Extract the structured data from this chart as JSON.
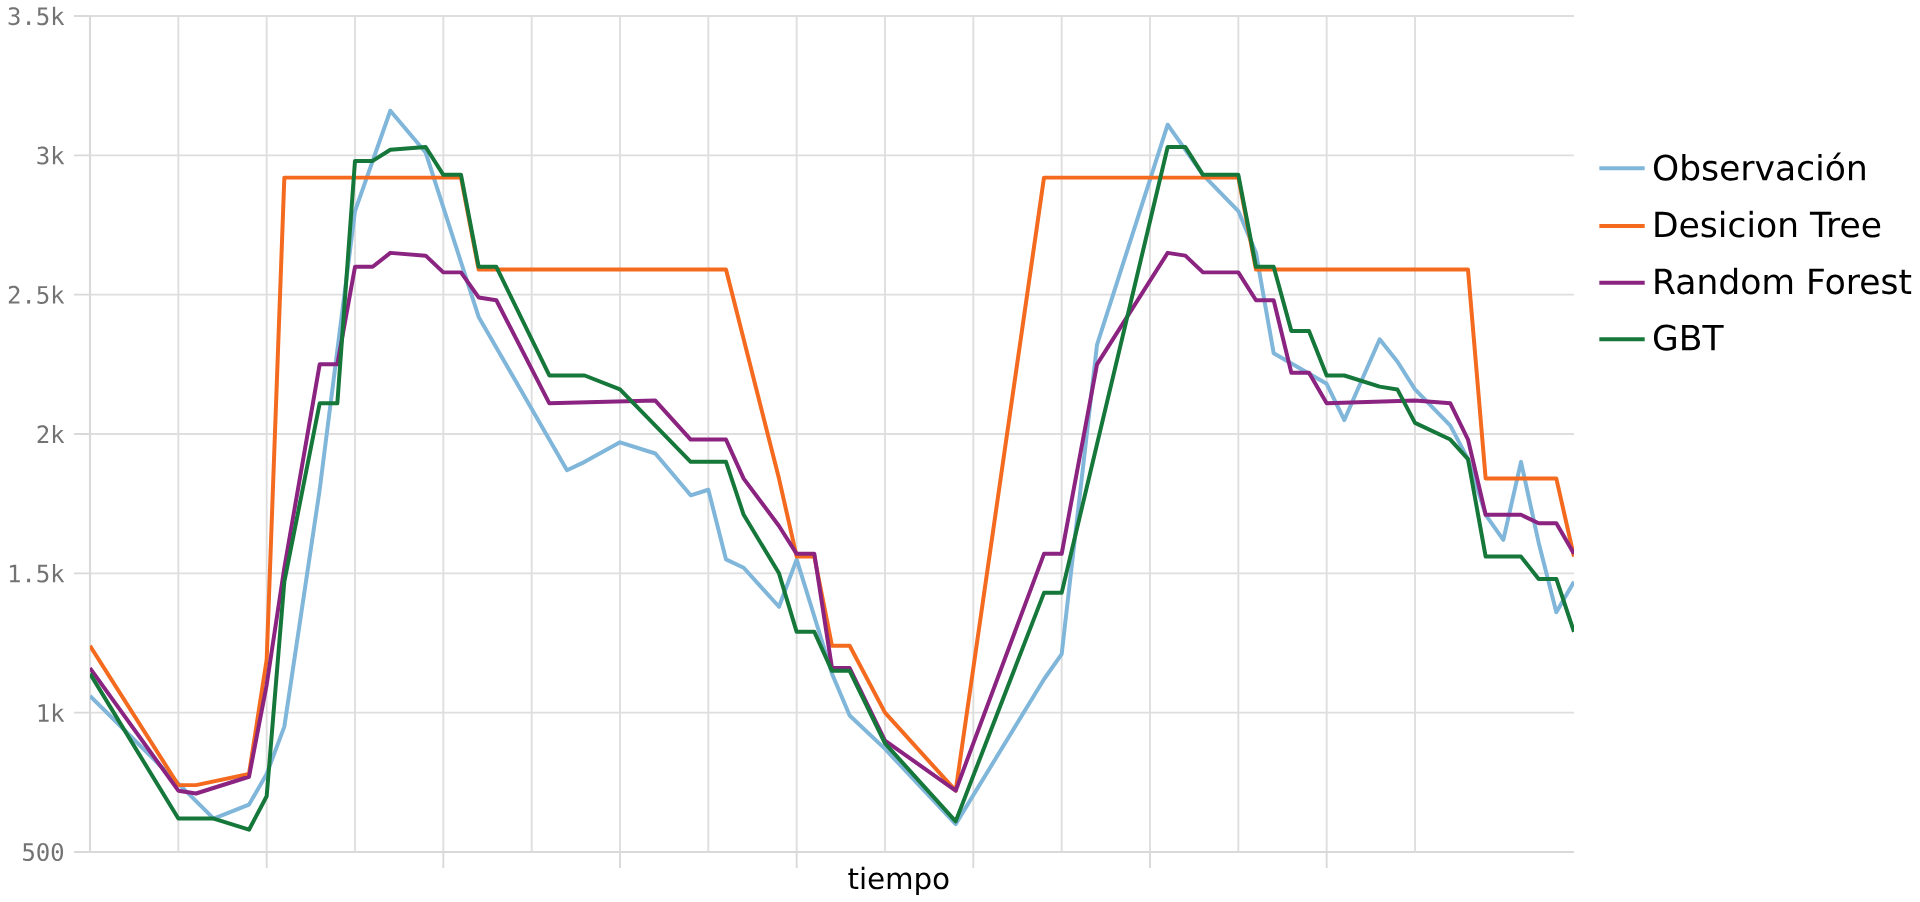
{
  "chart_data": {
    "type": "line",
    "xlabel": "tiempo",
    "categories": [
      null,
      null,
      null,
      null,
      null,
      null,
      null,
      null,
      null,
      null,
      null,
      null,
      null,
      null,
      null,
      null,
      null,
      null,
      null,
      null,
      null,
      null,
      null,
      null,
      null,
      null,
      null,
      null,
      null,
      null,
      null,
      null,
      null,
      null,
      null,
      null,
      null,
      null,
      null,
      null,
      null,
      null,
      null,
      null,
      null,
      null,
      null,
      null,
      null,
      null,
      null,
      null,
      null,
      null,
      null,
      null,
      null,
      null,
      null,
      null,
      null,
      null,
      null,
      null,
      null,
      null,
      null,
      null,
      null,
      null,
      null,
      null,
      null,
      null,
      null,
      null,
      null,
      null,
      null,
      null,
      null,
      null,
      null,
      null,
      null
    ],
    "ylim": [
      500,
      3500
    ],
    "yticks": [
      500,
      {
        "value": 1000,
        "label": "1k"
      },
      {
        "value": 1500,
        "label": "1.5k"
      },
      {
        "value": 2000,
        "label": "2k"
      },
      {
        "value": 2500,
        "label": "2.5k"
      },
      {
        "value": 3000,
        "label": "3k"
      },
      {
        "value": 3500,
        "label": "3.5k"
      }
    ],
    "grid": true,
    "legend": "right",
    "marker": "none",
    "line_style": "solid",
    "series": [
      {
        "name": "Observación",
        "color": "#7fb6d9",
        "values": [
          1060,
          null,
          null,
          null,
          null,
          null,
          null,
          620,
          null,
          670,
          780,
          950,
          null,
          1800,
          null,
          2800,
          null,
          3160,
          null,
          3010,
          null,
          null,
          2420,
          null,
          null,
          null,
          null,
          1870,
          1900,
          null,
          1970,
          null,
          1930,
          null,
          1780,
          1800,
          1550,
          1520,
          null,
          1380,
          1550,
          null,
          1140,
          990,
          null,
          870,
          null,
          null,
          null,
          600,
          null,
          null,
          null,
          null,
          1120,
          1210,
          null,
          2320,
          null,
          null,
          null,
          3110,
          null,
          2930,
          null,
          2800,
          2650,
          2290,
          null,
          null,
          2180,
          2050,
          null,
          2340,
          2260,
          2160,
          null,
          2030,
          1910,
          1710,
          1620,
          1900,
          1610,
          1360,
          1470
        ]
      },
      {
        "name": "Desicion Tree",
        "color": "#f46a1f",
        "values": [
          1240,
          null,
          null,
          null,
          null,
          740,
          740,
          null,
          null,
          780,
          1190,
          2920,
          null,
          null,
          null,
          null,
          null,
          null,
          null,
          null,
          null,
          2920,
          2590,
          null,
          null,
          null,
          null,
          null,
          null,
          null,
          null,
          null,
          null,
          null,
          null,
          null,
          2590,
          null,
          null,
          1840,
          1560,
          1560,
          1240,
          1240,
          null,
          1000,
          null,
          null,
          null,
          720,
          null,
          null,
          null,
          null,
          2920,
          null,
          null,
          null,
          null,
          null,
          null,
          null,
          null,
          null,
          null,
          2920,
          2590,
          null,
          null,
          null,
          null,
          null,
          null,
          null,
          null,
          null,
          null,
          null,
          2590,
          1840,
          null,
          null,
          null,
          1840,
          1560
        ]
      },
      {
        "name": "Random Forest",
        "color": "#8b2381",
        "values": [
          1160,
          null,
          null,
          null,
          null,
          720,
          710,
          null,
          null,
          770,
          1100,
          1520,
          null,
          2250,
          2250,
          2600,
          2600,
          2650,
          null,
          2640,
          2580,
          2580,
          2490,
          2480,
          null,
          null,
          2110,
          null,
          null,
          null,
          null,
          null,
          2120,
          null,
          1980,
          null,
          1980,
          1840,
          null,
          1670,
          1570,
          1570,
          1160,
          1160,
          null,
          900,
          null,
          null,
          null,
          720,
          null,
          null,
          null,
          null,
          1570,
          1570,
          null,
          2250,
          null,
          null,
          null,
          2650,
          2640,
          2580,
          null,
          2580,
          2480,
          2480,
          2220,
          2220,
          2110,
          null,
          null,
          null,
          null,
          2120,
          null,
          2110,
          1980,
          1710,
          null,
          1710,
          1680,
          1680,
          1570
        ]
      },
      {
        "name": "GBT",
        "color": "#16773a",
        "values": [
          1140,
          null,
          null,
          null,
          null,
          620,
          null,
          620,
          null,
          580,
          700,
          1470,
          null,
          2110,
          2110,
          2980,
          2980,
          3020,
          null,
          3030,
          2930,
          2930,
          2600,
          2600,
          null,
          null,
          2210,
          null,
          2210,
          null,
          2160,
          null,
          2030,
          null,
          1900,
          null,
          1900,
          1710,
          null,
          1500,
          1290,
          1290,
          1150,
          1150,
          null,
          890,
          null,
          null,
          null,
          610,
          null,
          null,
          null,
          null,
          1430,
          1430,
          null,
          null,
          null,
          null,
          null,
          3030,
          3030,
          2930,
          null,
          2930,
          2600,
          2600,
          2370,
          2370,
          2210,
          2210,
          null,
          2170,
          2160,
          2040,
          null,
          1980,
          1910,
          1560,
          null,
          1560,
          1480,
          1480,
          1290
        ]
      }
    ]
  }
}
